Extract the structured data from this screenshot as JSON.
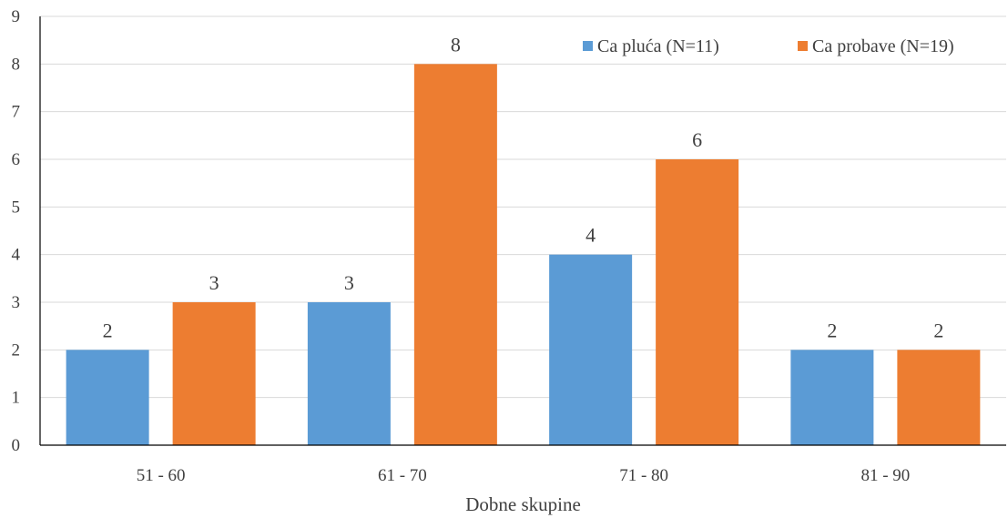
{
  "chart_data": {
    "type": "bar",
    "title": "",
    "xlabel": "Dobne skupine",
    "ylabel": "",
    "ylim": [
      0,
      9
    ],
    "yticks": [
      0,
      1,
      2,
      3,
      4,
      5,
      6,
      7,
      8,
      9
    ],
    "grid": true,
    "legend_position": "top-right",
    "categories": [
      "51 - 60",
      "61 - 70",
      "71 - 80",
      "81 - 90"
    ],
    "series": [
      {
        "name": "Ca pluća (N=11)",
        "color": "#5b9bd5",
        "values": [
          2,
          3,
          4,
          2
        ]
      },
      {
        "name": "Ca probave (N=19)",
        "color": "#ed7d31",
        "values": [
          3,
          8,
          6,
          2
        ]
      }
    ]
  }
}
